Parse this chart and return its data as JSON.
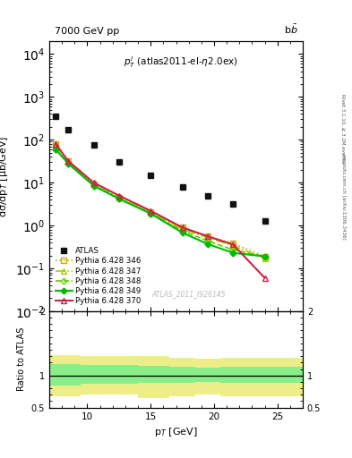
{
  "title_left": "7000 GeV pp",
  "title_right": "b$\\bar{b}$",
  "annotation": "$p_T^l$ (atlas2011-el-$\\eta$2.0ex)",
  "watermark": "ATLAS_2011_I926145",
  "right_label_top": "Rivet 3.1.10, ≥ 3.2M events",
  "right_label_bot": "mcplots.cern.ch [arXiv:1306.3436]",
  "ylabel_main": "dσ/dp$_T$ [μb/GeV]",
  "ylabel_ratio": "Ratio to ATLAS",
  "xlabel": "p$_T$ [GeV]",
  "xlim": [
    7,
    27
  ],
  "ylim_main": [
    0.01,
    20000
  ],
  "ylim_ratio": [
    0.5,
    2.0
  ],
  "atlas_x": [
    7.5,
    8.5,
    10.5,
    12.5,
    15.0,
    17.5,
    19.5,
    21.5,
    24.0
  ],
  "atlas_y": [
    350,
    175,
    75,
    30,
    15,
    8,
    5,
    3.2,
    1.3
  ],
  "py346_x": [
    7.5,
    8.5,
    10.5,
    12.5,
    15.0,
    17.5,
    19.5,
    21.5,
    24.0
  ],
  "py346_y": [
    80,
    32,
    9.0,
    4.5,
    2.1,
    0.9,
    0.57,
    0.38,
    0.19
  ],
  "py347_x": [
    7.5,
    8.5,
    10.5,
    12.5,
    15.0,
    17.5,
    19.5,
    21.5,
    24.0
  ],
  "py347_y": [
    75,
    30,
    9.0,
    4.5,
    2.0,
    0.82,
    0.52,
    0.34,
    0.17
  ],
  "py348_x": [
    7.5,
    8.5,
    10.5,
    12.5,
    15.0,
    17.5,
    19.5,
    21.5,
    24.0
  ],
  "py348_y": [
    60,
    28,
    8.5,
    4.2,
    1.9,
    0.75,
    0.44,
    0.27,
    0.19
  ],
  "py349_x": [
    7.5,
    8.5,
    10.5,
    12.5,
    15.0,
    17.5,
    19.5,
    21.5,
    24.0
  ],
  "py349_y": [
    60,
    28,
    8.5,
    4.2,
    1.9,
    0.68,
    0.37,
    0.23,
    0.19
  ],
  "py370_x": [
    7.5,
    8.5,
    10.5,
    12.5,
    15.0,
    17.5,
    19.5,
    21.5,
    24.0
  ],
  "py370_y": [
    80,
    32,
    10,
    5.0,
    2.2,
    0.9,
    0.56,
    0.36,
    0.06
  ],
  "ratio_x": [
    7.0,
    9.5,
    14.0,
    16.5,
    18.5,
    20.5,
    23.0,
    27.0
  ],
  "ratio_green_lo": [
    0.85,
    0.87,
    0.88,
    0.89,
    0.9,
    0.88,
    0.88,
    0.88
  ],
  "ratio_green_hi": [
    1.18,
    1.17,
    1.15,
    1.14,
    1.12,
    1.13,
    1.13,
    1.13
  ],
  "ratio_yellow_lo": [
    0.68,
    0.7,
    0.65,
    0.67,
    0.7,
    0.68,
    0.68,
    0.68
  ],
  "ratio_yellow_hi": [
    1.32,
    1.3,
    1.3,
    1.28,
    1.26,
    1.27,
    1.27,
    1.27
  ],
  "color_346": "#ccaa00",
  "color_347": "#aacc00",
  "color_348": "#66cc00",
  "color_349": "#00bb00",
  "color_370": "#cc2244",
  "color_atlas": "#111111",
  "color_green_band": "#88ee88",
  "color_yellow_band": "#eeee88",
  "legend_labels": [
    "ATLAS",
    "Pythia 6.428 346",
    "Pythia 6.428 347",
    "Pythia 6.428 348",
    "Pythia 6.428 349",
    "Pythia 6.428 370"
  ]
}
